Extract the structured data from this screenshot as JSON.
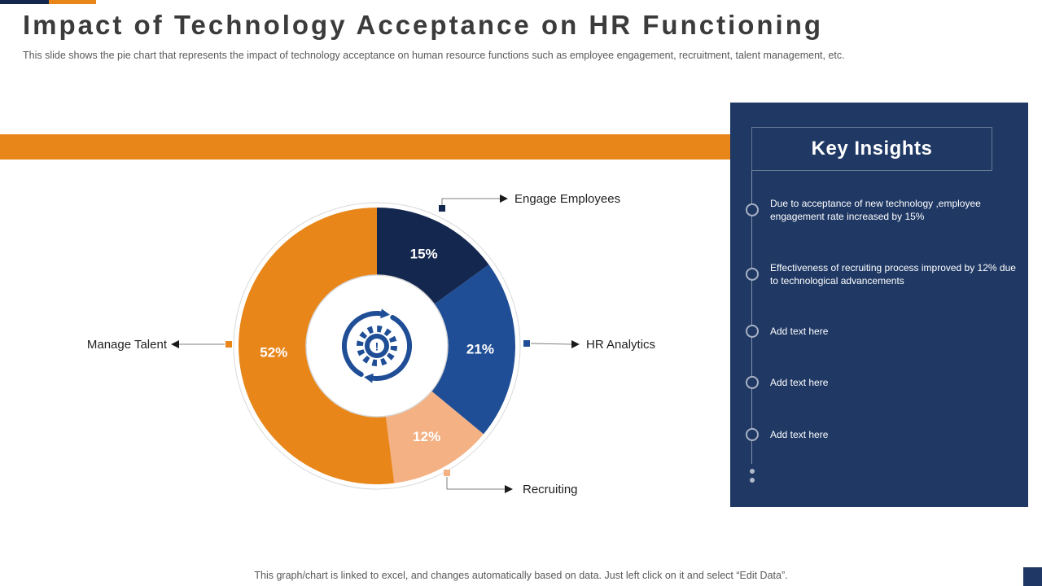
{
  "slide": {
    "title": "Impact of Technology Acceptance on HR Functioning",
    "subtitle": "This slide shows the pie chart that represents the impact of technology acceptance on human resource functions such as employee engagement, recruitment, talent management, etc.",
    "footer_note": "This graph/chart is linked to excel, and changes automatically based on data. Just left click on it and select “Edit Data”."
  },
  "chart_data": {
    "type": "pie",
    "donut": true,
    "categories": [
      "Engage Employees",
      "HR Analytics",
      "Recruiting",
      "Manage Talent"
    ],
    "values": [
      15,
      21,
      12,
      52
    ],
    "labels": [
      "15%",
      "21%",
      "12%",
      "52%"
    ],
    "colors": [
      "#14284F",
      "#1F4E96",
      "#F4B183",
      "#E8861A"
    ],
    "start_angle": "top",
    "direction": "clockwise",
    "center_icon": "process-sync-gear-alert-icon"
  },
  "key_insights": {
    "title": "Key Insights",
    "items": [
      "Due to  acceptance of new technology ,employee engagement rate increased by 15%",
      "Effectiveness of recruiting process improved by 12% due to technological advancements",
      "Add text here",
      "Add text here",
      "Add text here"
    ]
  },
  "theme": {
    "orange": "#E8861A",
    "navy": "#14284F",
    "panel_navy": "#1F3864",
    "icon_navy": "#1F4E96"
  }
}
